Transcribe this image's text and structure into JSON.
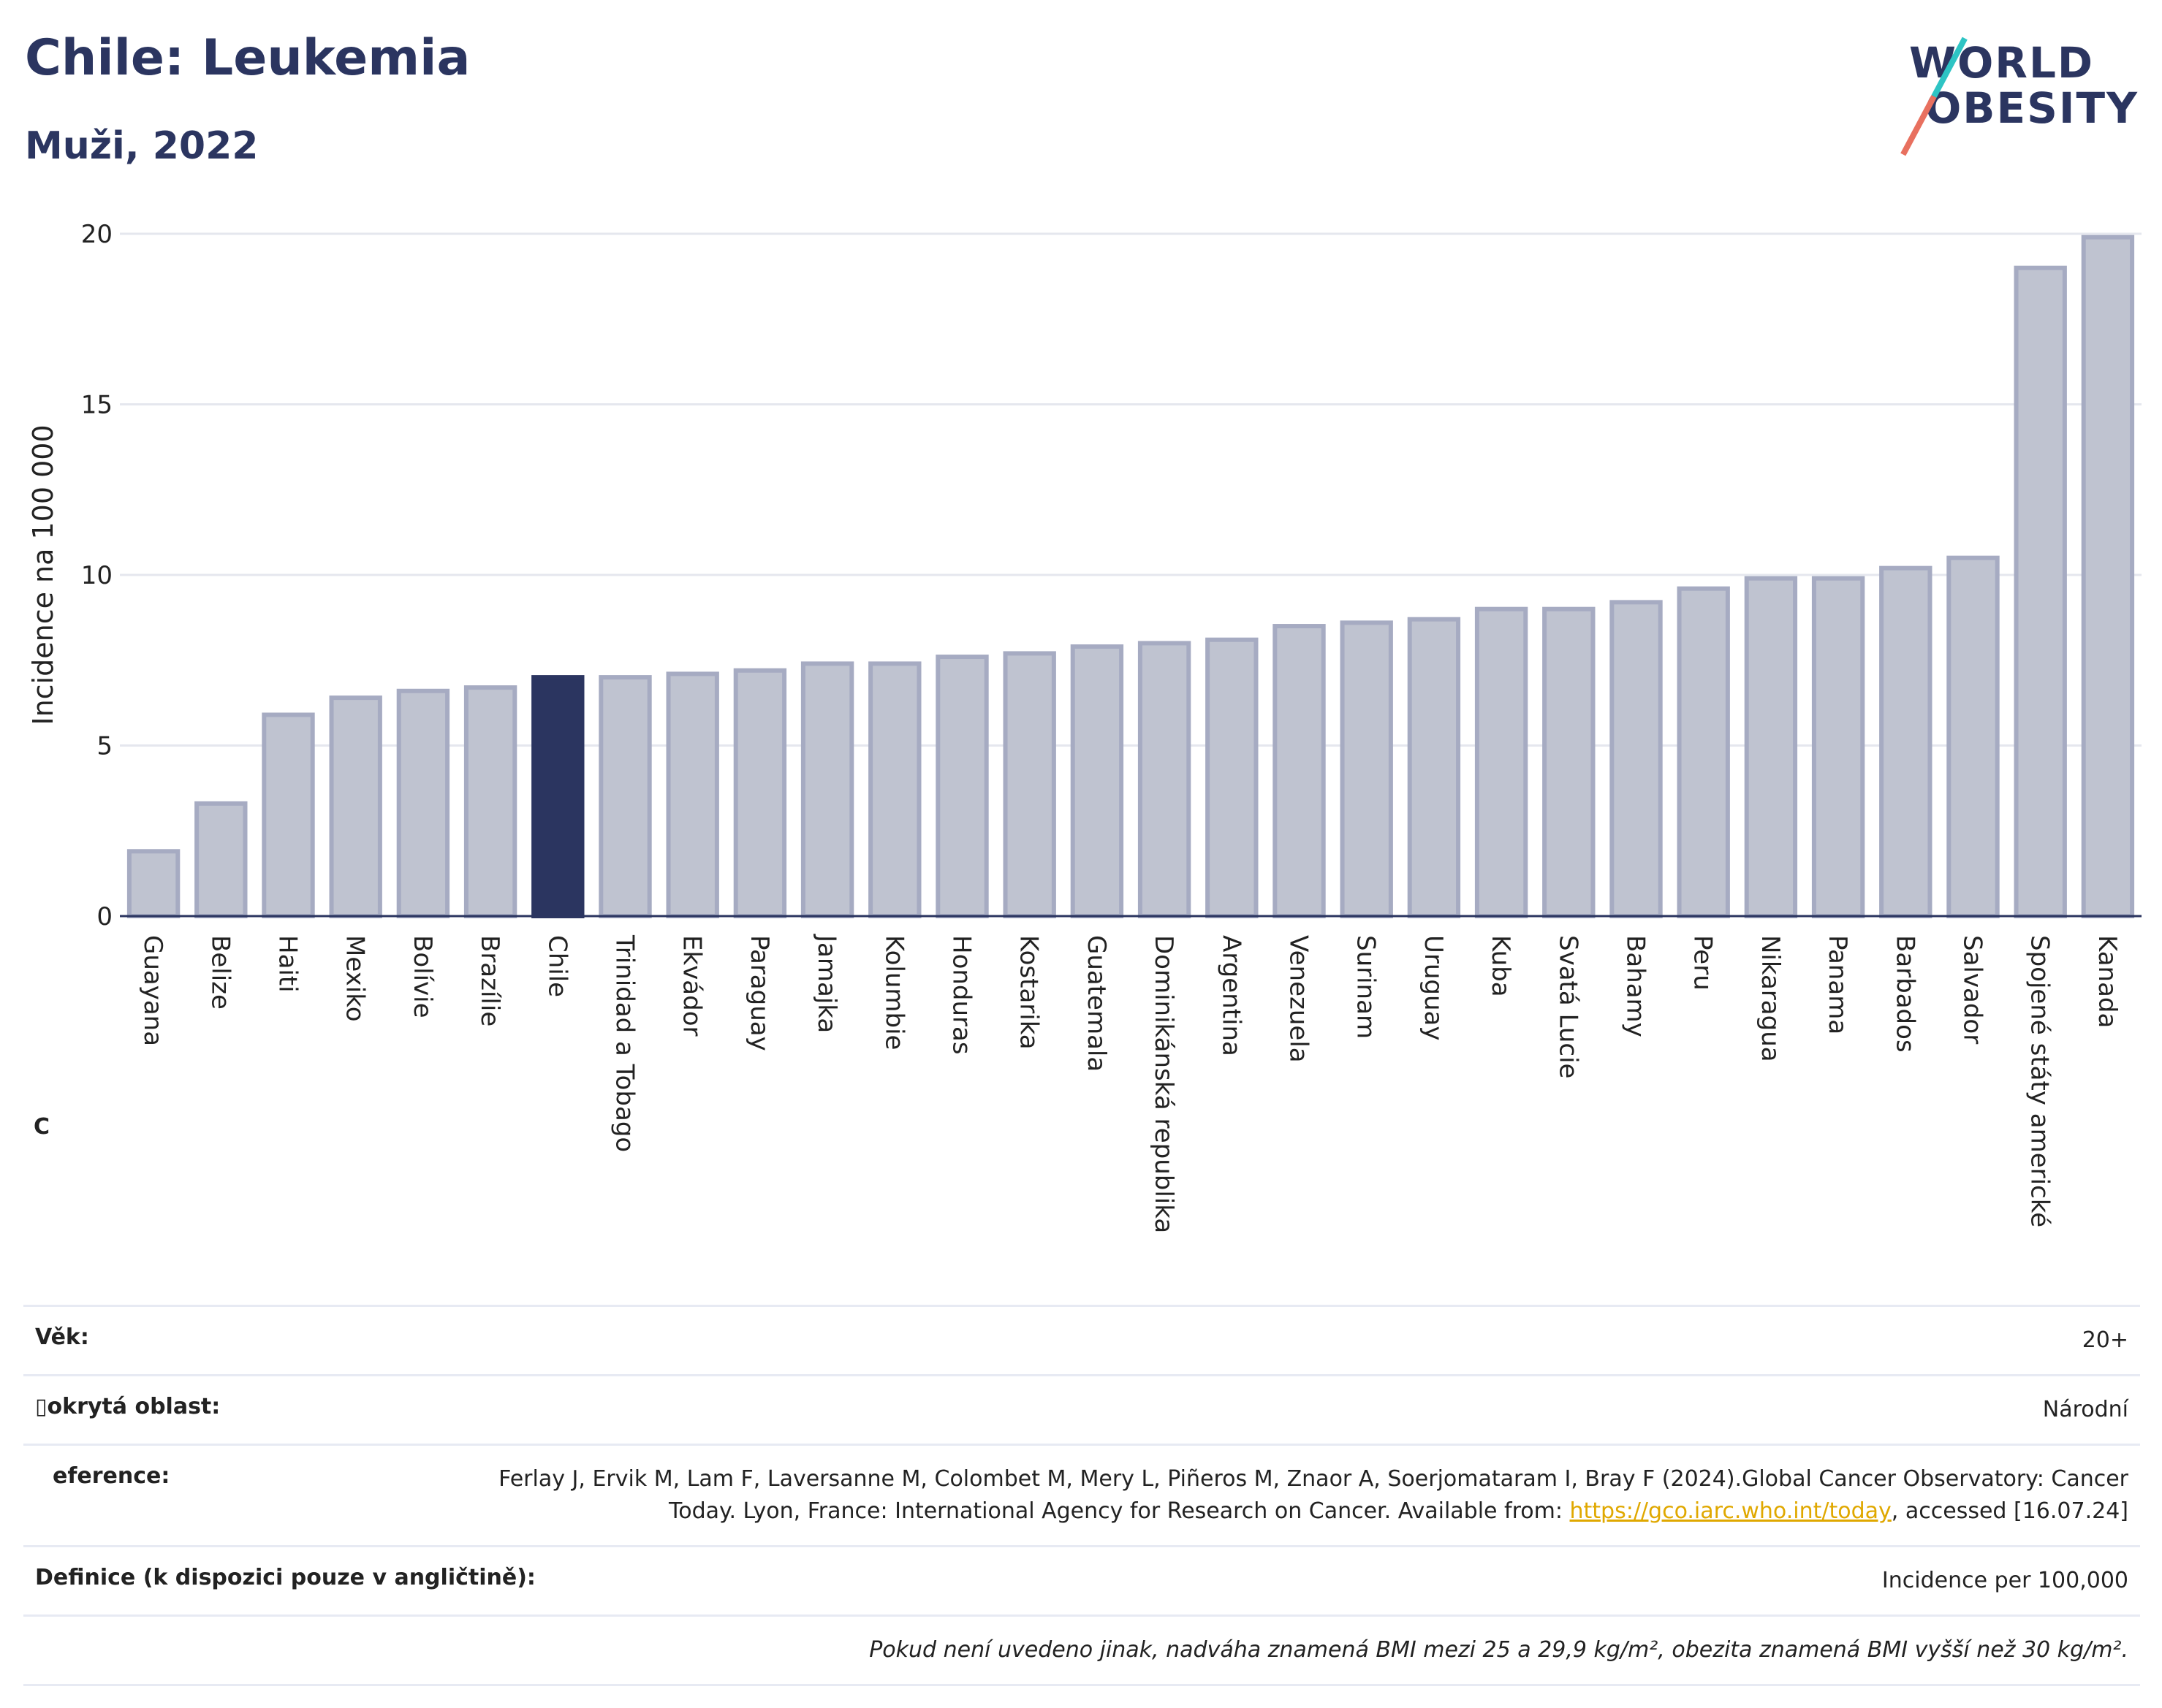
{
  "header": {
    "title": "Chile: Leukemia",
    "subtitle": "Muži, 2022",
    "logo_line1": "WORLD",
    "logo_line2": "OBESITY"
  },
  "colors": {
    "highlight": "#2b3560",
    "bar": "#bfc3d0",
    "bar_edge": "#a6abc2",
    "grid": "#e5e7ee"
  },
  "chart_data": {
    "type": "bar",
    "ylabel": "Incidence na 100 000",
    "ylim": [
      0,
      20
    ],
    "yticks": [
      0,
      5,
      10,
      15,
      20
    ],
    "highlight": "Chile",
    "categories": [
      "Guayana",
      "Belize",
      "Haiti",
      "Mexiko",
      "Bolívie",
      "Brazílie",
      "Chile",
      "Trinidad a Tobago",
      "Ekvádor",
      "Paraguay",
      "Jamajka",
      "Kolumbie",
      "Honduras",
      "Kostarika",
      "Guatemala",
      "Dominikánská republika",
      "Argentina",
      "Venezuela",
      "Surinam",
      "Uruguay",
      "Kuba",
      "Svatá Lucie",
      "Bahamy",
      "Peru",
      "Nikaragua",
      "Panama",
      "Barbados",
      "Salvador",
      "Spojené státy americké",
      "Kanada"
    ],
    "values": [
      1.9,
      3.3,
      5.9,
      6.4,
      6.6,
      6.7,
      7.0,
      7.0,
      7.1,
      7.2,
      7.4,
      7.4,
      7.6,
      7.7,
      7.9,
      8.0,
      8.1,
      8.5,
      8.6,
      8.7,
      9.0,
      9.0,
      9.2,
      9.6,
      9.9,
      9.9,
      10.2,
      10.5,
      19.0,
      19.9
    ]
  },
  "c_marker": "C",
  "info": {
    "age_label": "Věk:",
    "age_value": "20+",
    "area_label": "okrytá oblast:",
    "area_value": "Národní",
    "ref_label": "eference:",
    "ref_text_1": "Ferlay J, Ervik M, Lam F, Laversanne M, Colombet M, Mery L, Piñeros M, Znaor A, Soerjomataram I, Bray F (2024).Global Cancer Observatory: Cancer Today. Lyon, France: International Agency for Research on Cancer. Available from:",
    "ref_link": "https://gco.iarc.who.int/today",
    "ref_text_2": ", accessed [16.07.24]",
    "def_label": "Definice (k dispozici pouze v angličtině):",
    "def_value": "Incidence per 100,000",
    "note": "Pokud není uvedeno jinak, nadváha znamená BMI mezi 25 a 29,9 kg/m², obezita znamená BMI vyšší než 30 kg/m²."
  }
}
